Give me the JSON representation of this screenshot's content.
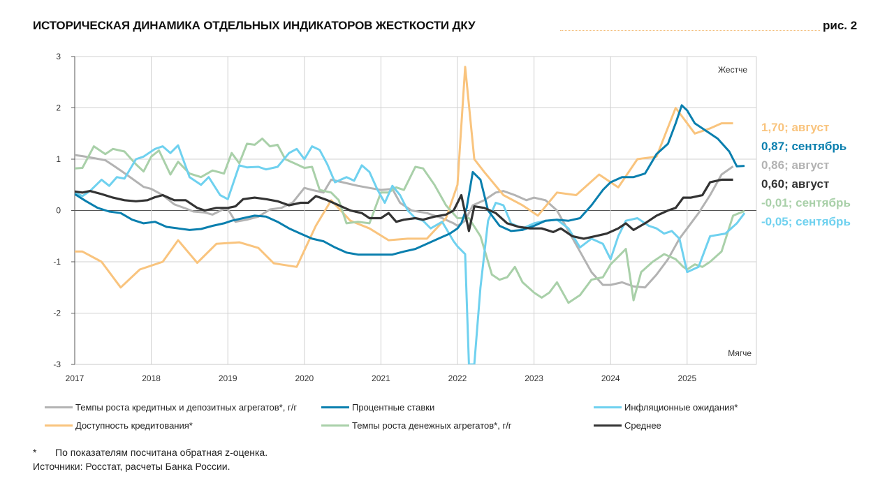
{
  "header": {
    "title": "ИСТОРИЧЕСКАЯ ДИНАМИКА ОТДЕЛЬНЫХ ИНДИКАТОРОВ ЖЕСТКОСТИ ДКУ",
    "figure_number": "рис. 2"
  },
  "chart_data": {
    "type": "line",
    "title": "ИСТОРИЧЕСКАЯ ДИНАМИКА ОТДЕЛЬНЫХ ИНДИКАТОРОВ ЖЕСТКОСТИ ДКУ",
    "xlabel": "",
    "ylabel": "",
    "xlim": [
      2017,
      2025.95
    ],
    "ylim": [
      -3,
      3
    ],
    "x_ticks": [
      "2017",
      "2018",
      "2019",
      "2020",
      "2021",
      "2022",
      "2023",
      "2024",
      "2025"
    ],
    "y_ticks": [
      "3",
      "2",
      "1",
      "0",
      "-1",
      "-2",
      "-3"
    ],
    "grid": true,
    "annotations": {
      "top": "Жестче",
      "bottom": "Мягче"
    },
    "legend_position": "bottom",
    "series": [
      {
        "name": "Темпы роста кредитных и депозитных агрегатов*, г/г",
        "key": "credit",
        "color": "#b3b3b3",
        "end_label": "0,86; август",
        "x": [
          2017.0,
          2017.1,
          2017.25,
          2017.4,
          2017.5,
          2017.6,
          2017.75,
          2017.9,
          2018.0,
          2018.15,
          2018.3,
          2018.45,
          2018.55,
          2018.7,
          2018.8,
          2018.95,
          2019.0,
          2019.1,
          2019.25,
          2019.4,
          2019.55,
          2019.7,
          2019.85,
          2020.0,
          2020.1,
          2020.25,
          2020.35,
          2020.5,
          2020.7,
          2020.85,
          2021.0,
          2021.15,
          2021.25,
          2021.4,
          2021.6,
          2021.8,
          2021.95,
          2022.0,
          2022.1,
          2022.2,
          2022.35,
          2022.5,
          2022.6,
          2022.75,
          2022.9,
          2023.0,
          2023.15,
          2023.3,
          2023.45,
          2023.6,
          2023.75,
          2023.9,
          2024.0,
          2024.15,
          2024.3,
          2024.45,
          2024.6,
          2024.75,
          2024.9,
          2025.0,
          2025.15,
          2025.3,
          2025.45,
          2025.6
        ],
        "y": [
          1.08,
          1.06,
          1.02,
          0.98,
          0.88,
          0.78,
          0.62,
          0.46,
          0.42,
          0.3,
          0.12,
          0.04,
          -0.02,
          -0.04,
          -0.08,
          0.03,
          0.03,
          -0.22,
          -0.18,
          -0.12,
          0.02,
          0.05,
          0.16,
          0.44,
          0.4,
          0.35,
          0.6,
          0.55,
          0.48,
          0.44,
          0.4,
          0.42,
          0.15,
          0.0,
          -0.05,
          -0.15,
          -0.25,
          -0.3,
          -0.2,
          0.1,
          0.2,
          0.35,
          0.38,
          0.3,
          0.2,
          0.25,
          0.2,
          0.0,
          -0.4,
          -0.8,
          -1.2,
          -1.45,
          -1.45,
          -1.4,
          -1.48,
          -1.5,
          -1.25,
          -0.95,
          -0.55,
          -0.35,
          -0.05,
          0.3,
          0.7,
          0.86
        ]
      },
      {
        "name": "Процентные ставки",
        "key": "rates",
        "color": "#0a7fae",
        "end_label": "0,87; сентябрь",
        "x": [
          2017.0,
          2017.15,
          2017.3,
          2017.45,
          2017.6,
          2017.75,
          2017.9,
          2018.05,
          2018.2,
          2018.35,
          2018.5,
          2018.65,
          2018.8,
          2018.95,
          2019.05,
          2019.2,
          2019.35,
          2019.5,
          2019.65,
          2019.8,
          2019.95,
          2020.1,
          2020.25,
          2020.4,
          2020.55,
          2020.7,
          2020.85,
          2021.0,
          2021.15,
          2021.3,
          2021.45,
          2021.6,
          2021.75,
          2021.9,
          2022.0,
          2022.05,
          2022.12,
          2022.2,
          2022.3,
          2022.4,
          2022.55,
          2022.7,
          2022.85,
          2023.0,
          2023.15,
          2023.3,
          2023.45,
          2023.6,
          2023.75,
          2023.9,
          2024.0,
          2024.15,
          2024.3,
          2024.45,
          2024.6,
          2024.75,
          2024.85,
          2024.93,
          2025.0,
          2025.1,
          2025.25,
          2025.4,
          2025.55,
          2025.65,
          2025.75
        ],
        "y": [
          0.32,
          0.18,
          0.05,
          -0.02,
          -0.05,
          -0.18,
          -0.25,
          -0.22,
          -0.32,
          -0.35,
          -0.38,
          -0.36,
          -0.3,
          -0.25,
          -0.2,
          -0.15,
          -0.1,
          -0.12,
          -0.22,
          -0.35,
          -0.45,
          -0.55,
          -0.6,
          -0.72,
          -0.82,
          -0.86,
          -0.86,
          -0.86,
          -0.86,
          -0.8,
          -0.75,
          -0.65,
          -0.55,
          -0.45,
          -0.35,
          -0.25,
          0.05,
          0.75,
          0.6,
          0.0,
          -0.3,
          -0.4,
          -0.38,
          -0.3,
          -0.2,
          -0.18,
          -0.2,
          -0.15,
          0.1,
          0.4,
          0.55,
          0.65,
          0.65,
          0.72,
          1.1,
          1.3,
          1.7,
          2.05,
          1.95,
          1.7,
          1.55,
          1.4,
          1.15,
          0.86,
          0.87
        ]
      },
      {
        "name": "Инфляционные ожидания*",
        "key": "infl",
        "color": "#6fd1ef",
        "end_label": "-0,05; сентябрь",
        "x": [
          2017.0,
          2017.1,
          2017.2,
          2017.35,
          2017.45,
          2017.55,
          2017.65,
          2017.8,
          2017.9,
          2018.05,
          2018.15,
          2018.25,
          2018.35,
          2018.5,
          2018.65,
          2018.75,
          2018.9,
          2019.0,
          2019.15,
          2019.25,
          2019.4,
          2019.5,
          2019.65,
          2019.8,
          2019.9,
          2020.0,
          2020.1,
          2020.2,
          2020.3,
          2020.4,
          2020.55,
          2020.65,
          2020.75,
          2020.85,
          2020.95,
          2021.05,
          2021.15,
          2021.25,
          2021.35,
          2021.45,
          2021.55,
          2021.65,
          2021.8,
          2021.95,
          2022.0,
          2022.1,
          2022.15,
          2022.22,
          2022.3,
          2022.4,
          2022.5,
          2022.6,
          2022.7,
          2022.85,
          2023.0,
          2023.15,
          2023.3,
          2023.45,
          2023.6,
          2023.75,
          2023.9,
          2024.0,
          2024.1,
          2024.2,
          2024.35,
          2024.5,
          2024.6,
          2024.7,
          2024.8,
          2024.9,
          2025.0,
          2025.15,
          2025.3,
          2025.5,
          2025.65,
          2025.75
        ],
        "y": [
          0.35,
          0.28,
          0.38,
          0.6,
          0.48,
          0.65,
          0.62,
          1.0,
          1.05,
          1.2,
          1.25,
          1.12,
          1.27,
          0.65,
          0.5,
          0.65,
          0.3,
          0.22,
          0.88,
          0.84,
          0.85,
          0.8,
          0.85,
          1.12,
          1.2,
          1.0,
          1.25,
          1.18,
          0.9,
          0.55,
          0.65,
          0.58,
          0.88,
          0.75,
          0.42,
          0.15,
          0.48,
          0.3,
          0.0,
          -0.15,
          -0.2,
          -0.35,
          -0.22,
          -0.6,
          -0.7,
          -0.85,
          -3.0,
          -3.0,
          -1.5,
          -0.2,
          0.15,
          0.1,
          -0.25,
          -0.35,
          -0.25,
          -0.2,
          -0.18,
          -0.35,
          -0.72,
          -0.55,
          -0.65,
          -0.95,
          -0.5,
          -0.2,
          -0.15,
          -0.3,
          -0.35,
          -0.45,
          -0.4,
          -0.55,
          -1.2,
          -1.1,
          -0.5,
          -0.45,
          -0.25,
          -0.05
        ]
      },
      {
        "name": "Доступность кредитования*",
        "key": "access",
        "color": "#f9c47e",
        "end_label": "1,70; август",
        "x": [
          2017.0,
          2017.1,
          2017.35,
          2017.6,
          2017.85,
          2018.15,
          2018.35,
          2018.6,
          2018.85,
          2019.15,
          2019.4,
          2019.6,
          2019.9,
          2020.15,
          2020.35,
          2020.6,
          2020.85,
          2021.1,
          2021.35,
          2021.6,
          2021.85,
          2022.0,
          2022.1,
          2022.22,
          2022.35,
          2022.6,
          2022.85,
          2023.05,
          2023.3,
          2023.55,
          2023.85,
          2024.1,
          2024.35,
          2024.6,
          2024.85,
          2025.1,
          2025.3,
          2025.45,
          2025.6
        ],
        "y": [
          -0.8,
          -0.8,
          -1.0,
          -1.5,
          -1.15,
          -1.0,
          -0.58,
          -1.02,
          -0.65,
          -0.62,
          -0.73,
          -1.03,
          -1.1,
          -0.3,
          0.2,
          -0.2,
          -0.35,
          -0.58,
          -0.55,
          -0.55,
          -0.15,
          0.5,
          2.8,
          1.0,
          0.75,
          0.3,
          0.1,
          -0.1,
          0.35,
          0.3,
          0.7,
          0.45,
          1.0,
          1.05,
          2.0,
          1.5,
          1.6,
          1.7,
          1.7
        ]
      },
      {
        "name": "Темпы роста денежных агрегатов*, г/г",
        "key": "money",
        "color": "#a9d0a9",
        "end_label": "-0,01; сентябрь",
        "x": [
          2017.0,
          2017.1,
          2017.25,
          2017.4,
          2017.5,
          2017.65,
          2017.8,
          2017.9,
          2018.0,
          2018.1,
          2018.25,
          2018.35,
          2018.5,
          2018.65,
          2018.8,
          2018.95,
          2019.05,
          2019.15,
          2019.25,
          2019.35,
          2019.45,
          2019.55,
          2019.65,
          2019.75,
          2019.9,
          2020.0,
          2020.1,
          2020.2,
          2020.35,
          2020.45,
          2020.55,
          2020.7,
          2020.85,
          2021.0,
          2021.1,
          2021.2,
          2021.3,
          2021.45,
          2021.55,
          2021.7,
          2021.85,
          2022.0,
          2022.15,
          2022.3,
          2022.45,
          2022.55,
          2022.65,
          2022.75,
          2022.85,
          2023.0,
          2023.1,
          2023.2,
          2023.3,
          2023.45,
          2023.6,
          2023.75,
          2023.9,
          2024.0,
          2024.1,
          2024.2,
          2024.3,
          2024.4,
          2024.55,
          2024.7,
          2024.85,
          2024.95,
          2025.0,
          2025.1,
          2025.2,
          2025.3,
          2025.45,
          2025.6,
          2025.75
        ],
        "y": [
          0.82,
          0.83,
          1.25,
          1.1,
          1.2,
          1.15,
          0.9,
          0.76,
          1.05,
          1.17,
          0.7,
          0.95,
          0.72,
          0.65,
          0.78,
          0.72,
          1.12,
          0.92,
          1.3,
          1.28,
          1.4,
          1.25,
          1.28,
          1.0,
          0.9,
          0.83,
          0.85,
          0.4,
          0.35,
          0.2,
          -0.25,
          -0.22,
          -0.25,
          0.35,
          0.35,
          0.45,
          0.4,
          0.85,
          0.82,
          0.5,
          0.1,
          -0.15,
          -0.15,
          -0.5,
          -1.25,
          -1.35,
          -1.3,
          -1.1,
          -1.4,
          -1.6,
          -1.7,
          -1.6,
          -1.4,
          -1.8,
          -1.65,
          -1.35,
          -1.3,
          -1.05,
          -0.9,
          -0.75,
          -1.75,
          -1.2,
          -1.0,
          -0.85,
          -0.95,
          -1.1,
          -1.15,
          -1.05,
          -1.1,
          -1.0,
          -0.8,
          -0.1,
          -0.01
        ]
      },
      {
        "name": "Среднее",
        "key": "avg",
        "color": "#333333",
        "end_label": "0,60; август",
        "x": [
          2017.0,
          2017.1,
          2017.2,
          2017.35,
          2017.5,
          2017.65,
          2017.8,
          2017.95,
          2018.05,
          2018.15,
          2018.3,
          2018.45,
          2018.6,
          2018.7,
          2018.85,
          2019.0,
          2019.1,
          2019.2,
          2019.35,
          2019.5,
          2019.65,
          2019.8,
          2019.95,
          2020.05,
          2020.15,
          2020.3,
          2020.45,
          2020.6,
          2020.75,
          2020.85,
          2021.0,
          2021.1,
          2021.2,
          2021.3,
          2021.45,
          2021.55,
          2021.7,
          2021.85,
          2021.95,
          2022.05,
          2022.15,
          2022.22,
          2022.35,
          2022.5,
          2022.65,
          2022.8,
          2022.95,
          2023.1,
          2023.25,
          2023.35,
          2023.5,
          2023.65,
          2023.8,
          2023.95,
          2024.1,
          2024.2,
          2024.3,
          2024.45,
          2024.6,
          2024.75,
          2024.85,
          2024.95,
          2025.05,
          2025.2,
          2025.3,
          2025.45,
          2025.6
        ],
        "y": [
          0.37,
          0.35,
          0.38,
          0.32,
          0.25,
          0.2,
          0.18,
          0.2,
          0.26,
          0.3,
          0.2,
          0.2,
          0.05,
          0.0,
          0.05,
          0.05,
          0.08,
          0.22,
          0.25,
          0.22,
          0.18,
          0.1,
          0.15,
          0.15,
          0.28,
          0.2,
          0.1,
          0.0,
          -0.05,
          -0.15,
          -0.15,
          -0.05,
          -0.22,
          -0.18,
          -0.15,
          -0.18,
          -0.12,
          -0.08,
          0.0,
          0.3,
          -0.4,
          0.08,
          0.05,
          -0.05,
          -0.25,
          -0.32,
          -0.35,
          -0.35,
          -0.42,
          -0.35,
          -0.5,
          -0.55,
          -0.5,
          -0.45,
          -0.35,
          -0.25,
          -0.38,
          -0.25,
          -0.1,
          0.0,
          0.05,
          0.25,
          0.25,
          0.3,
          0.55,
          0.6,
          0.6
        ]
      }
    ]
  },
  "end_labels_order": [
    "access",
    "rates",
    "credit",
    "avg",
    "money",
    "infl"
  ],
  "legend": {
    "rows": [
      [
        "credit",
        "rates",
        "infl"
      ],
      [
        "access",
        "money",
        "avg"
      ]
    ]
  },
  "footnotes": {
    "star": "*",
    "note": "По показателям посчитана обратная z-оценка.",
    "sources": "Источники: Росстат, расчеты Банка России."
  }
}
